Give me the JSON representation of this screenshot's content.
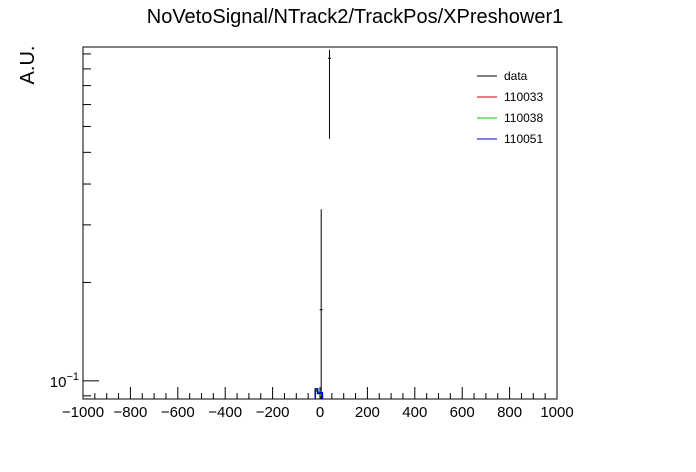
{
  "chart_data": {
    "type": "histogram",
    "title": "NoVetoSignal/NTrack2/TrackPos/XPreshower1",
    "xlabel": "",
    "ylabel": "A.U.",
    "xlim": [
      -1000,
      1000
    ],
    "x_ticks": [
      -1000,
      -800,
      -600,
      -400,
      -200,
      0,
      200,
      400,
      600,
      800,
      1000
    ],
    "x_tick_labels": [
      "−1000",
      "−800",
      "−600",
      "−400",
      "−200",
      "0",
      "200",
      "400",
      "600",
      "800",
      "1000"
    ],
    "y_scale": "log",
    "ylim": [
      0.088,
      1.05
    ],
    "y_tick_labels": [
      {
        "value": 0.1,
        "label": "10^{-1}"
      }
    ],
    "grid": false,
    "legend_position": "top-right",
    "series": [
      {
        "name": "data",
        "color": "#000000",
        "style": "points-with-errors",
        "points": [
          {
            "x": 5,
            "y": 0.165,
            "err_low": 0.0,
            "err_high": 0.17
          },
          {
            "x": 40,
            "y": 0.97,
            "err_low": 0.42,
            "err_high": 0.06
          }
        ]
      },
      {
        "name": "110033",
        "color": "#cc0000",
        "style": "step",
        "bins": [
          {
            "x0": -20,
            "x1": -10,
            "y": 0.093
          },
          {
            "x0": -10,
            "x1": 0,
            "y": 0.092
          },
          {
            "x0": 0,
            "x1": 10,
            "y": 0.09
          }
        ]
      },
      {
        "name": "110038",
        "color": "#00cc00",
        "style": "step",
        "bins": [
          {
            "x0": -20,
            "x1": -10,
            "y": 0.0935
          },
          {
            "x0": -10,
            "x1": 0,
            "y": 0.0925
          },
          {
            "x0": 0,
            "x1": 10,
            "y": 0.0905
          }
        ]
      },
      {
        "name": "110051",
        "color": "#0000cc",
        "style": "step",
        "bins": [
          {
            "x0": -20,
            "x1": -10,
            "y": 0.0945
          },
          {
            "x0": -10,
            "x1": 0,
            "y": 0.0915
          },
          {
            "x0": 0,
            "x1": 10,
            "y": 0.092
          }
        ]
      }
    ]
  }
}
